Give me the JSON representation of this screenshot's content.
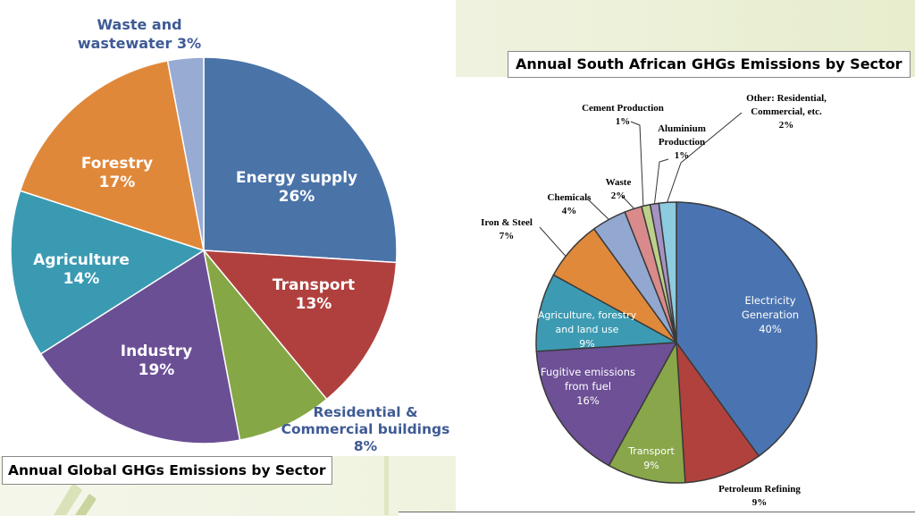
{
  "slide": {
    "accent_color": "#e3ead0"
  },
  "chart_data": [
    {
      "type": "pie",
      "title": "Annual Global GHGs Emissions by Sector",
      "slices": [
        {
          "label": "Energy supply",
          "value": 26,
          "pct": "26%",
          "color": "#4a73a8"
        },
        {
          "label": "Transport",
          "value": 13,
          "pct": "13%",
          "color": "#b0403e"
        },
        {
          "label": "Residential & Commercial buildings",
          "value": 8,
          "pct": "8%",
          "color": "#86a746"
        },
        {
          "label": "Industry",
          "value": 19,
          "pct": "19%",
          "color": "#6b4f95"
        },
        {
          "label": "Agriculture",
          "value": 14,
          "pct": "14%",
          "color": "#3a9ab2"
        },
        {
          "label": "Forestry",
          "value": 17,
          "pct": "17%",
          "color": "#e0883a"
        },
        {
          "label": "Waste and wastewater",
          "value": 3,
          "pct": "3%",
          "color": "#97abd3"
        }
      ]
    },
    {
      "type": "pie",
      "title": "Annual South African GHGs Emissions by Sector",
      "slices": [
        {
          "label": "Electricity Generation",
          "value": 40,
          "pct": "40%",
          "color": "#4a74b1"
        },
        {
          "label": "Petroleum Refining",
          "value": 9,
          "pct": "9%",
          "color": "#b0413d"
        },
        {
          "label": "Transport",
          "value": 9,
          "pct": "9%",
          "color": "#89a74a"
        },
        {
          "label": "Fugitive emissions from fuel",
          "value": 16,
          "pct": "16%",
          "color": "#6d5096"
        },
        {
          "label": "Agriculture, forestry and land use",
          "value": 9,
          "pct": "9%",
          "color": "#3c9bb3"
        },
        {
          "label": "Iron & Steel",
          "value": 7,
          "pct": "7%",
          "color": "#e0893b"
        },
        {
          "label": "Chemicals",
          "value": 4,
          "pct": "4%",
          "color": "#92a8d0"
        },
        {
          "label": "Waste",
          "value": 2,
          "pct": "2%",
          "color": "#d88b8a"
        },
        {
          "label": "Cement Production",
          "value": 1,
          "pct": "1%",
          "color": "#bcd08a"
        },
        {
          "label": "Aluminium Production",
          "value": 1,
          "pct": "1%",
          "color": "#a593c4"
        },
        {
          "label": "Other: Residential, Commercial, etc.",
          "value": 2,
          "pct": "2%",
          "color": "#8ccbe0"
        }
      ]
    }
  ],
  "labels": {
    "global": {
      "energy": [
        "Energy supply",
        "26%"
      ],
      "transport": [
        "Transport",
        "13%"
      ],
      "residential": [
        "Residential &",
        "Commercial buildings",
        "8%"
      ],
      "industry": [
        "Industry",
        "19%"
      ],
      "agriculture": [
        "Agriculture",
        "14%"
      ],
      "forestry": [
        "Forestry",
        "17%"
      ],
      "waste": [
        "Waste and",
        "wastewater 3%"
      ]
    },
    "sa": {
      "electricity": [
        "Electricity",
        "Generation",
        "40%"
      ],
      "petroleum": [
        "Petroleum Refining",
        "9%"
      ],
      "transport": [
        "Transport",
        "9%"
      ],
      "fugitive": [
        "Fugitive emissions",
        "from fuel",
        "16%"
      ],
      "agriculture": [
        "Agriculture, forestry",
        "and land use",
        "9%"
      ],
      "iron": [
        "Iron & Steel",
        "7%"
      ],
      "chemicals": [
        "Chemicals",
        "4%"
      ],
      "waste": [
        "Waste",
        "2%"
      ],
      "cement": [
        "Cement Production",
        "1%"
      ],
      "aluminium": [
        "Aluminium",
        "Production",
        "1%"
      ],
      "other": [
        "Other: Residential,",
        "Commercial, etc.",
        "2%"
      ]
    }
  }
}
